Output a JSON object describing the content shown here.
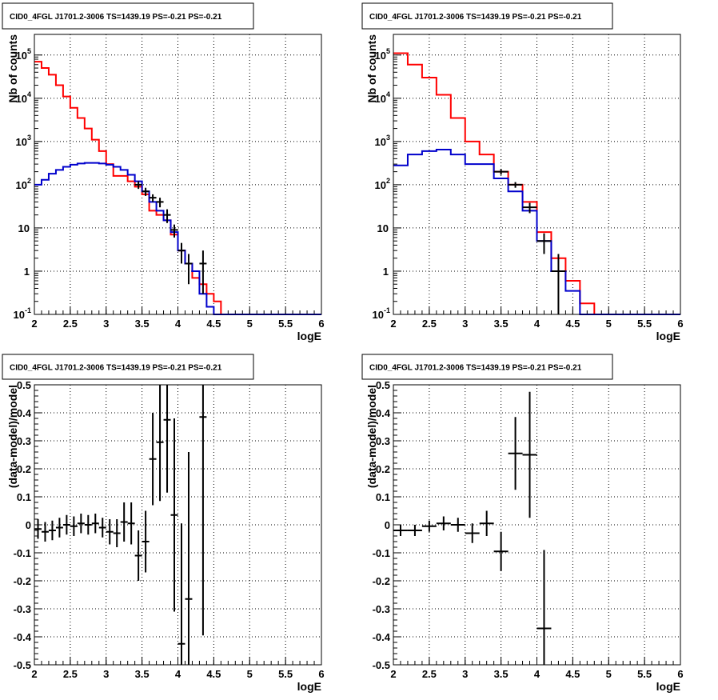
{
  "chart_data": [
    {
      "panel": "top-left",
      "type": "line",
      "title": "CID0_4FGL J1701.2-3006 TS=1439.19 PS=-0.21 PS=-0.21",
      "xlabel": "logE",
      "ylabel": "Nb of counts",
      "xlim": [
        2,
        6
      ],
      "ylim": [
        0.1,
        300000
      ],
      "yscale": "log",
      "xticks": [
        "2",
        "2.5",
        "3",
        "3.5",
        "4",
        "4.5",
        "5",
        "5.5",
        "6"
      ],
      "yticks": [
        "10^-1",
        "1",
        "10",
        "10^2",
        "10^3",
        "10^4",
        "10^5"
      ],
      "grid": true,
      "hist_edges": [
        2.0,
        2.1,
        2.2,
        2.3,
        2.4,
        2.5,
        2.6,
        2.7,
        2.8,
        2.9,
        3.0,
        3.1,
        3.2,
        3.3,
        3.4,
        3.5,
        3.6,
        3.7,
        3.8,
        3.9,
        4.0,
        4.1,
        4.2,
        4.3,
        4.4,
        4.5,
        4.6,
        4.7,
        4.8,
        4.9,
        5.0,
        5.1,
        5.2,
        5.3,
        5.4,
        5.5,
        5.6,
        5.7,
        5.8,
        5.9,
        6.0
      ],
      "series": [
        {
          "kind": "hist",
          "color": "#ff0000",
          "values": [
            70000,
            50000,
            35000,
            20000,
            11000,
            6000,
            3500,
            2000,
            1100,
            600,
            300,
            160,
            160,
            120,
            90,
            60,
            25,
            20,
            15,
            7,
            3,
            1.5,
            0.7,
            0.5,
            0.3,
            0.2,
            0.1,
            0.1,
            0.1,
            0.1,
            0.1,
            0.1,
            0.1,
            0.1,
            0.1,
            0.1,
            0.1,
            0.1,
            0.1,
            0.1
          ]
        },
        {
          "kind": "hist",
          "color": "#0000cc",
          "values": [
            100,
            130,
            180,
            220,
            260,
            290,
            310,
            320,
            320,
            310,
            290,
            260,
            220,
            170,
            120,
            70,
            40,
            25,
            15,
            8,
            3,
            1.5,
            1,
            0.3,
            0.15,
            0.1,
            0.1,
            0.1,
            0.1,
            0.1,
            0.1,
            0.1,
            0.1,
            0.1,
            0.1,
            0.1,
            0.1,
            0.1,
            0.1,
            0.1
          ]
        },
        {
          "kind": "points",
          "color": "#000000",
          "x": [
            3.45,
            3.55,
            3.65,
            3.75,
            3.85,
            3.95,
            4.05,
            4.15,
            4.35
          ],
          "y": [
            100,
            70,
            50,
            40,
            20,
            9,
            3,
            1.5,
            1.5
          ],
          "xerr": 0.05,
          "ylow": [
            80,
            55,
            40,
            30,
            13,
            6,
            1.5,
            0.5,
            0.3
          ],
          "yhigh": [
            120,
            85,
            60,
            50,
            27,
            12,
            4.5,
            2.5,
            3
          ]
        }
      ]
    },
    {
      "panel": "top-right",
      "type": "line",
      "title": "CID0_4FGL J1701.2-3006 TS=1439.19 PS=-0.21 PS=-0.21",
      "xlabel": "logE",
      "ylabel": "Nb of counts",
      "xlim": [
        2,
        6
      ],
      "ylim": [
        0.1,
        300000
      ],
      "yscale": "log",
      "xticks": [
        "2",
        "2.5",
        "3",
        "3.5",
        "4",
        "4.5",
        "5",
        "5.5",
        "6"
      ],
      "yticks": [
        "10^-1",
        "1",
        "10",
        "10^2",
        "10^3",
        "10^4",
        "10^5"
      ],
      "grid": true,
      "hist_edges": [
        2.0,
        2.2,
        2.4,
        2.6,
        2.8,
        3.0,
        3.2,
        3.4,
        3.6,
        3.8,
        4.0,
        4.2,
        4.4,
        4.6,
        4.8,
        5.0,
        5.2,
        5.4,
        5.6,
        5.8,
        6.0
      ],
      "series": [
        {
          "kind": "hist",
          "color": "#ff0000",
          "values": [
            110000,
            60000,
            30000,
            12000,
            3500,
            1000,
            500,
            200,
            100,
            40,
            8,
            2,
            0.6,
            0.18,
            0.1,
            0.1,
            0.1,
            0.1,
            0.1,
            0.1
          ]
        },
        {
          "kind": "hist",
          "color": "#0000cc",
          "values": [
            280,
            500,
            600,
            650,
            500,
            300,
            300,
            140,
            70,
            25,
            5,
            1,
            0.35,
            0.1,
            0.1,
            0.1,
            0.1,
            0.1,
            0.1,
            0.1
          ]
        },
        {
          "kind": "points",
          "color": "#000000",
          "x": [
            3.5,
            3.7,
            3.9,
            4.1,
            4.3
          ],
          "y": [
            200,
            100,
            30,
            5,
            1
          ],
          "xerr": 0.1,
          "ylow": [
            170,
            85,
            22,
            2.5,
            0.1
          ],
          "yhigh": [
            230,
            115,
            38,
            7.5,
            2.5
          ]
        }
      ]
    },
    {
      "panel": "bottom-left",
      "type": "scatter",
      "title": "CID0_4FGL J1701.2-3006 TS=1439.19 PS=-0.21 PS=-0.21",
      "xlabel": "logE",
      "ylabel": "(data-model)/model",
      "xlim": [
        2,
        6
      ],
      "ylim": [
        -0.5,
        0.5
      ],
      "xticks": [
        "2",
        "2.5",
        "3",
        "3.5",
        "4",
        "4.5",
        "5",
        "5.5",
        "6"
      ],
      "yticks": [
        "-0.5",
        "-0.4",
        "-0.3",
        "-0.2",
        "-0.1",
        "0",
        "0.1",
        "0.2",
        "0.3",
        "0.4",
        "0.5"
      ],
      "grid": true,
      "series": [
        {
          "kind": "points",
          "color": "#000000",
          "x": [
            2.05,
            2.15,
            2.25,
            2.35,
            2.45,
            2.55,
            2.65,
            2.75,
            2.85,
            2.95,
            3.05,
            3.15,
            3.25,
            3.35,
            3.45,
            3.55,
            3.65,
            3.75,
            3.85,
            3.95,
            4.05,
            4.15,
            4.35
          ],
          "y": [
            -0.015,
            -0.025,
            -0.02,
            -0.01,
            0.0,
            -0.005,
            0.005,
            0.0,
            0.005,
            -0.01,
            -0.025,
            -0.03,
            0.01,
            0.005,
            -0.11,
            -0.06,
            0.235,
            0.295,
            0.375,
            0.035,
            -0.425,
            -0.265,
            0.385
          ],
          "xerr": 0.05,
          "yerr": [
            0.035,
            0.035,
            0.035,
            0.035,
            0.035,
            0.035,
            0.035,
            0.035,
            0.035,
            0.035,
            0.045,
            0.05,
            0.07,
            0.075,
            0.09,
            0.11,
            0.165,
            0.21,
            0.26,
            0.345,
            0.43,
            0.525,
            0.78
          ]
        }
      ]
    },
    {
      "panel": "bottom-right",
      "type": "scatter",
      "title": "CID0_4FGL J1701.2-3006 TS=1439.19 PS=-0.21 PS=-0.21",
      "xlabel": "logE",
      "ylabel": "(data-model)/model",
      "xlim": [
        2,
        6
      ],
      "ylim": [
        -0.5,
        0.5
      ],
      "xticks": [
        "2",
        "2.5",
        "3",
        "3.5",
        "4",
        "4.5",
        "5",
        "5.5",
        "6"
      ],
      "yticks": [
        "-0.5",
        "-0.4",
        "-0.3",
        "-0.2",
        "-0.1",
        "0",
        "0.1",
        "0.2",
        "0.3",
        "0.4",
        "0.5"
      ],
      "grid": true,
      "series": [
        {
          "kind": "points",
          "color": "#000000",
          "x": [
            2.1,
            2.3,
            2.5,
            2.7,
            2.9,
            3.1,
            3.3,
            3.5,
            3.7,
            3.9,
            4.1
          ],
          "y": [
            -0.02,
            -0.02,
            -0.005,
            0.005,
            0.0,
            -0.03,
            0.005,
            -0.095,
            0.255,
            0.25,
            -0.37
          ],
          "xerr": 0.1,
          "yerr": [
            0.02,
            0.02,
            0.02,
            0.025,
            0.025,
            0.035,
            0.045,
            0.07,
            0.13,
            0.225,
            0.28
          ]
        }
      ]
    }
  ]
}
